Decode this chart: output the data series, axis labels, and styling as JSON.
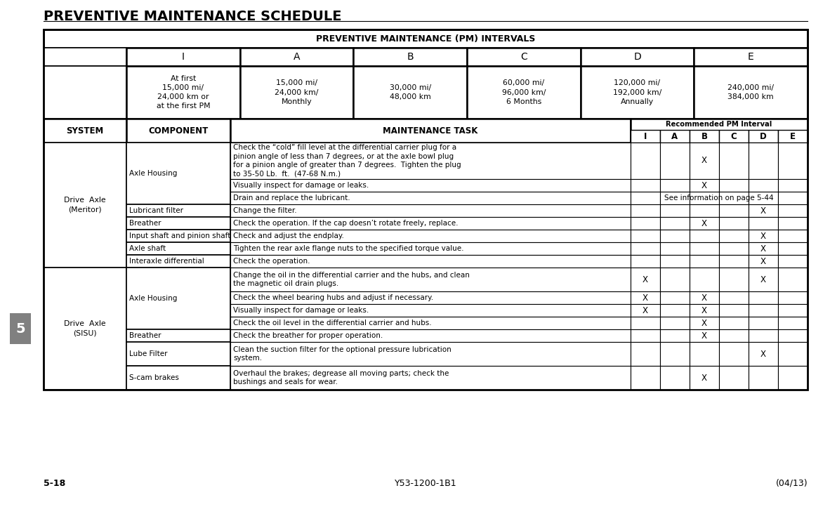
{
  "title": "PREVENTIVE MAINTENANCE SCHEDULE",
  "table_title": "PREVENTIVE MAINTENANCE (PM) INTERVALS",
  "interval_headers": [
    "I",
    "A",
    "B",
    "C",
    "D",
    "E"
  ],
  "interval_descriptions": [
    "At first\n15,000 mi/\n24,000 km or\nat the first PM",
    "15,000 mi/\n24,000 km/\nMonthly",
    "30,000 mi/\n48,000 km",
    "60,000 mi/\n96,000 km/\n6 Months",
    "120,000 mi/\n192,000 km/\nAnnually",
    "240,000 mi/\n384,000 km"
  ],
  "pm_subheaders": [
    "I",
    "A",
    "B",
    "C",
    "D",
    "E"
  ],
  "rows": [
    {
      "system": "Drive  Axle\n(Meritor)",
      "component": "Axle Housing",
      "task": "Check the “cold” fill level at the differential carrier plug for a\npinion angle of less than 7 degrees, or at the axle bowl plug\nfor a pinion angle of greater than 7 degrees.  Tighten the plug\nto 35-50 Lb.  ft.  (47-68 N.m.)",
      "I": "",
      "A": "",
      "B": "X",
      "C": "",
      "D": "",
      "E": ""
    },
    {
      "system": "",
      "component": "",
      "task": "Visually inspect for damage or leaks.",
      "I": "",
      "A": "",
      "B": "X",
      "C": "",
      "D": "",
      "E": ""
    },
    {
      "system": "",
      "component": "",
      "task": "Drain and replace the lubricant.",
      "I": "",
      "A": "",
      "B": "",
      "C": "",
      "D": "",
      "E": "",
      "special": "See information on page 5-44"
    },
    {
      "system": "",
      "component": "Lubricant filter",
      "task": "Change the filter.",
      "I": "",
      "A": "",
      "B": "",
      "C": "",
      "D": "X",
      "E": ""
    },
    {
      "system": "",
      "component": "Breather",
      "task": "Check the operation. If the cap doesn’t rotate freely, replace.",
      "I": "",
      "A": "",
      "B": "X",
      "C": "",
      "D": "",
      "E": ""
    },
    {
      "system": "",
      "component": "Input shaft and pinion shaft",
      "task": "Check and adjust the endplay.",
      "I": "",
      "A": "",
      "B": "",
      "C": "",
      "D": "X",
      "E": ""
    },
    {
      "system": "",
      "component": "Axle shaft",
      "task": "Tighten the rear axle flange nuts to the specified torque value.",
      "I": "",
      "A": "",
      "B": "",
      "C": "",
      "D": "X",
      "E": ""
    },
    {
      "system": "",
      "component": "Interaxle differential",
      "task": "Check the operation.",
      "I": "",
      "A": "",
      "B": "",
      "C": "",
      "D": "X",
      "E": ""
    },
    {
      "system": "Drive  Axle\n(SISU)",
      "component": "Axle Housing",
      "task": "Change the oil in the differential carrier and the hubs, and clean\nthe magnetic oil drain plugs.",
      "I": "X",
      "A": "",
      "B": "",
      "C": "",
      "D": "X",
      "E": ""
    },
    {
      "system": "",
      "component": "",
      "task": "Check the wheel bearing hubs and adjust if necessary.",
      "I": "X",
      "A": "",
      "B": "X",
      "C": "",
      "D": "",
      "E": ""
    },
    {
      "system": "",
      "component": "",
      "task": "Visually inspect for damage or leaks.",
      "I": "X",
      "A": "",
      "B": "X",
      "C": "",
      "D": "",
      "E": ""
    },
    {
      "system": "",
      "component": "",
      "task": "Check the oil level in the differential carrier and hubs.",
      "I": "",
      "A": "",
      "B": "X",
      "C": "",
      "D": "",
      "E": ""
    },
    {
      "system": "",
      "component": "Breather",
      "task": "Check the breather for proper operation.",
      "I": "",
      "A": "",
      "B": "X",
      "C": "",
      "D": "",
      "E": ""
    },
    {
      "system": "",
      "component": "Lube Filter",
      "task": "Clean the suction filter for the optional pressure lubrication\nsystem.",
      "I": "",
      "A": "",
      "B": "",
      "C": "",
      "D": "X",
      "E": ""
    },
    {
      "system": "",
      "component": "S-cam brakes",
      "task": "Overhaul the brakes; degrease all moving parts; check the\nbushings and seals for wear.",
      "I": "",
      "A": "",
      "B": "X",
      "C": "",
      "D": "",
      "E": ""
    }
  ],
  "system_spans": [
    [
      0,
      7,
      "Drive  Axle\n(Meritor)"
    ],
    [
      8,
      14,
      "Drive  Axle\n(SISU)"
    ]
  ],
  "component_spans": [
    [
      0,
      2,
      "Axle Housing"
    ],
    [
      3,
      3,
      "Lubricant filter"
    ],
    [
      4,
      4,
      "Breather"
    ],
    [
      5,
      5,
      "Input shaft and pinion shaft"
    ],
    [
      6,
      6,
      "Axle shaft"
    ],
    [
      7,
      7,
      "Interaxle differential"
    ],
    [
      8,
      11,
      "Axle Housing"
    ],
    [
      12,
      12,
      "Breather"
    ],
    [
      13,
      13,
      "Lube Filter"
    ],
    [
      14,
      14,
      "S-cam brakes"
    ]
  ],
  "footer_left": "5-18",
  "footer_center": "Y53-1200-1B1",
  "footer_right": "(04/13)",
  "page_num": "5",
  "bg_color": "#ffffff",
  "tab_color": "#808080"
}
